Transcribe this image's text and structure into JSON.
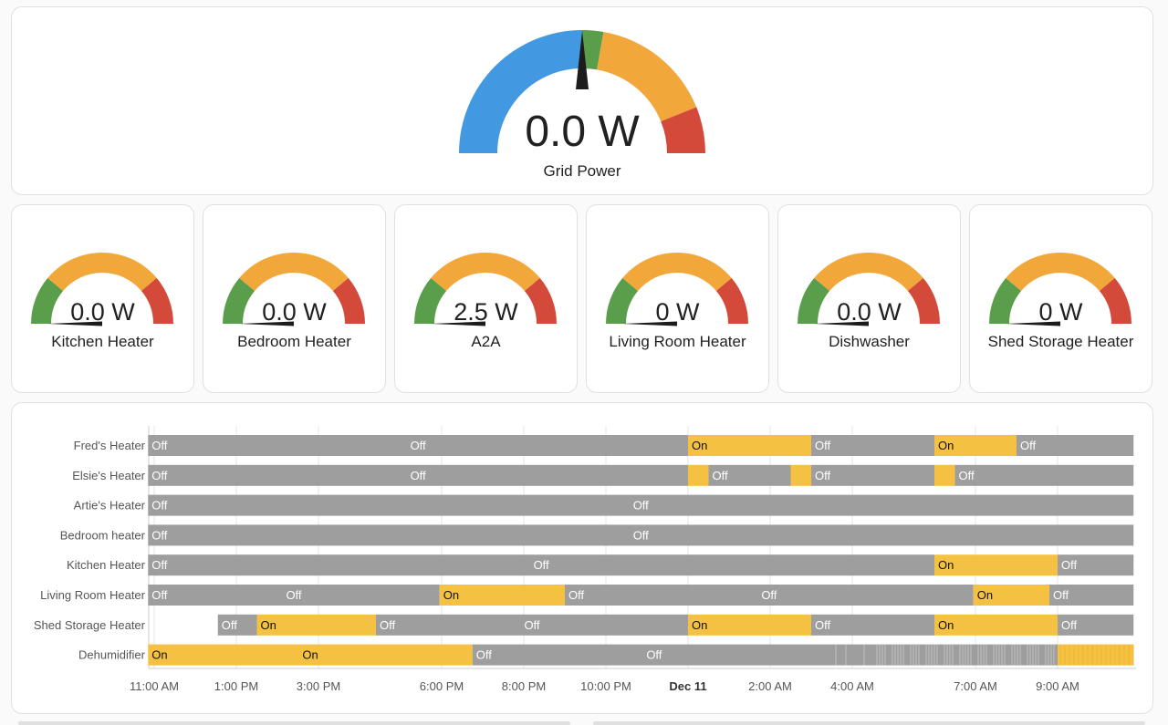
{
  "colors": {
    "blue": "#4299e1",
    "green": "#5a9e4b",
    "orange": "#f2a73b",
    "red": "#d44a3a",
    "needle": "#1c1c1c",
    "on": "#f5c142",
    "off": "#9e9e9e"
  },
  "main_gauge": {
    "value": "0.0 W",
    "name": "Grid Power"
  },
  "small_gauges": [
    {
      "value": "0.0 W",
      "name": "Kitchen Heater"
    },
    {
      "value": "0.0 W",
      "name": "Bedroom Heater"
    },
    {
      "value": "2.5 W",
      "name": "A2A"
    },
    {
      "value": "0 W",
      "name": "Living Room Heater"
    },
    {
      "value": "0.0 W",
      "name": "Dishwasher"
    },
    {
      "value": "0 W",
      "name": "Shed Storage Heater"
    }
  ],
  "timeline": {
    "ticks": [
      {
        "label": "11:00 AM",
        "t": 0,
        "bold": false
      },
      {
        "label": "1:00 PM",
        "t": 2,
        "bold": false
      },
      {
        "label": "3:00 PM",
        "t": 4,
        "bold": false
      },
      {
        "label": "6:00 PM",
        "t": 7,
        "bold": false
      },
      {
        "label": "8:00 PM",
        "t": 9,
        "bold": false
      },
      {
        "label": "10:00 PM",
        "t": 11,
        "bold": false
      },
      {
        "label": "Dec 11",
        "t": 13,
        "bold": true
      },
      {
        "label": "2:00 AM",
        "t": 15,
        "bold": false
      },
      {
        "label": "4:00 AM",
        "t": 17,
        "bold": false
      },
      {
        "label": "7:00 AM",
        "t": 20,
        "bold": false
      },
      {
        "label": "9:00 AM",
        "t": 22,
        "bold": false
      }
    ],
    "rows": [
      {
        "label": "Fred's Heater",
        "segments": [
          {
            "state": "Off",
            "start": -0.15,
            "end": 13,
            "text": "Off"
          },
          {
            "state": "On",
            "start": 13,
            "end": 16,
            "text": "On"
          },
          {
            "state": "Off",
            "start": 16,
            "end": 19,
            "text": "Off"
          },
          {
            "state": "On",
            "start": 19,
            "end": 21,
            "text": "On"
          },
          {
            "state": "Off",
            "start": 21,
            "end": 23.85,
            "text": "Off"
          }
        ]
      },
      {
        "label": "Elsie's Heater",
        "segments": [
          {
            "state": "Off",
            "start": -0.15,
            "end": 13,
            "text": "Off"
          },
          {
            "state": "On",
            "start": 13,
            "end": 13.5,
            "text": ""
          },
          {
            "state": "Off",
            "start": 13.5,
            "end": 15.5,
            "text": "Off"
          },
          {
            "state": "On",
            "start": 15.5,
            "end": 16,
            "text": ""
          },
          {
            "state": "Off",
            "start": 16,
            "end": 19,
            "text": "Off"
          },
          {
            "state": "On",
            "start": 19,
            "end": 19.5,
            "text": ""
          },
          {
            "state": "Off",
            "start": 19.5,
            "end": 23.85,
            "text": "Off"
          }
        ]
      },
      {
        "label": "Artie's Heater",
        "segments": [
          {
            "state": "Off",
            "start": -0.15,
            "end": 23.85,
            "text": "Off"
          }
        ]
      },
      {
        "label": "Bedroom heater",
        "segments": [
          {
            "state": "Off",
            "start": -0.15,
            "end": 23.85,
            "text": "Off"
          }
        ]
      },
      {
        "label": "Kitchen Heater",
        "segments": [
          {
            "state": "Off",
            "start": -0.15,
            "end": 19,
            "text": "Off"
          },
          {
            "state": "On",
            "start": 19,
            "end": 22,
            "text": "On"
          },
          {
            "state": "Off",
            "start": 22,
            "end": 23.85,
            "text": "Off"
          }
        ]
      },
      {
        "label": "Living Room Heater",
        "segments": [
          {
            "state": "Off",
            "start": -0.15,
            "end": 6.95,
            "text": "Off"
          },
          {
            "state": "On",
            "start": 6.95,
            "end": 10,
            "text": "On"
          },
          {
            "state": "Off",
            "start": 10,
            "end": 19.95,
            "text": "Off"
          },
          {
            "state": "On",
            "start": 19.95,
            "end": 21.8,
            "text": "On"
          },
          {
            "state": "Off",
            "start": 21.8,
            "end": 23.85,
            "text": "Off"
          }
        ]
      },
      {
        "label": "Shed Storage Heater",
        "segments": [
          {
            "state": "Off",
            "start": 1.55,
            "end": 2.5,
            "text": "Off"
          },
          {
            "state": "On",
            "start": 2.5,
            "end": 5.4,
            "text": "On"
          },
          {
            "state": "Off",
            "start": 5.4,
            "end": 13,
            "text": "Off"
          },
          {
            "state": "On",
            "start": 13,
            "end": 16,
            "text": "On"
          },
          {
            "state": "Off",
            "start": 16,
            "end": 19,
            "text": "Off"
          },
          {
            "state": "On",
            "start": 19,
            "end": 22,
            "text": "On"
          },
          {
            "state": "Off",
            "start": 22,
            "end": 23.85,
            "text": "Off"
          }
        ]
      },
      {
        "label": "Dehumidifier",
        "segments": [
          {
            "state": "On",
            "start": -0.15,
            "end": 7.75,
            "text": "On"
          },
          {
            "state": "Off",
            "start": 7.75,
            "end": 16.6,
            "text": "Off"
          },
          {
            "state": "Mixed",
            "start": 16.6,
            "end": 22,
            "text": ""
          },
          {
            "state": "OnMixed",
            "start": 22,
            "end": 23.85,
            "text": ""
          }
        ]
      }
    ]
  }
}
